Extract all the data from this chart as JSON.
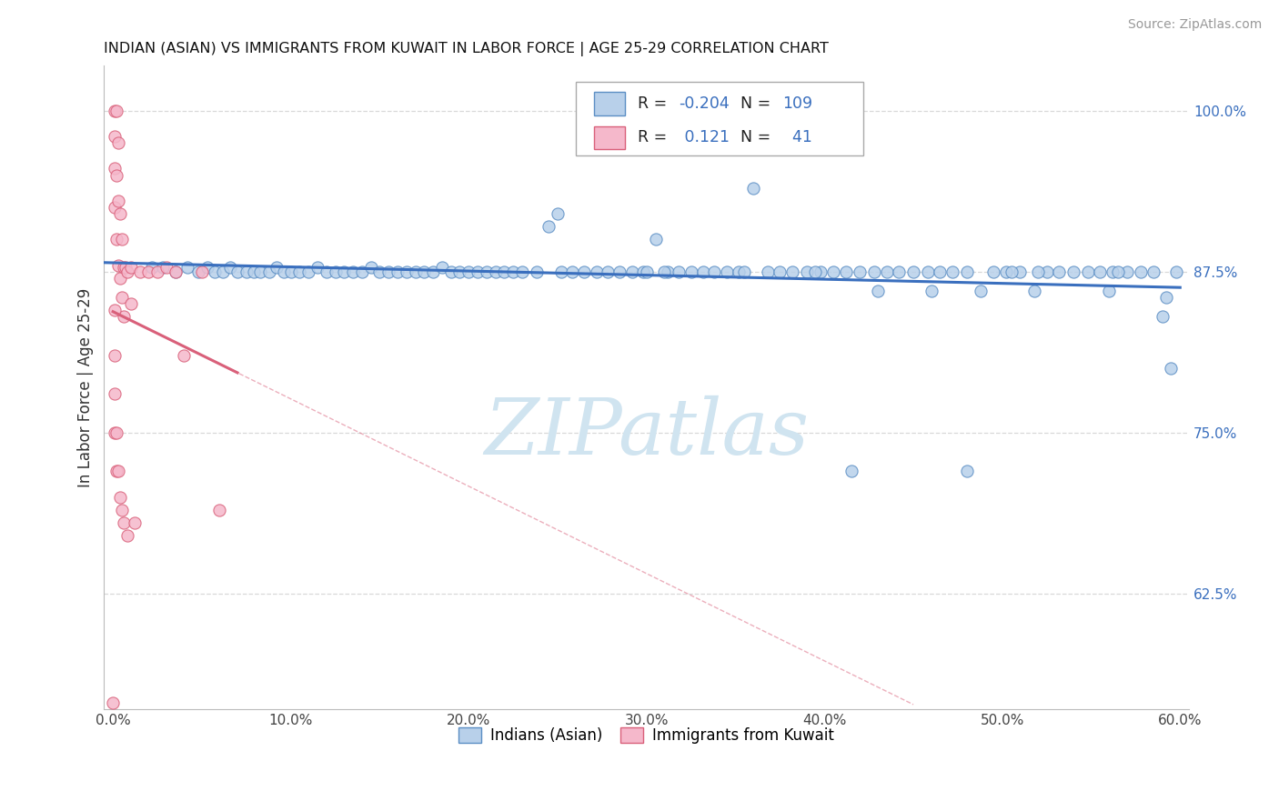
{
  "title": "INDIAN (ASIAN) VS IMMIGRANTS FROM KUWAIT IN LABOR FORCE | AGE 25-29 CORRELATION CHART",
  "source": "Source: ZipAtlas.com",
  "ylabel": "In Labor Force | Age 25-29",
  "xlim": [
    -0.005,
    0.605
  ],
  "ylim": [
    0.535,
    1.035
  ],
  "yticks": [
    0.625,
    0.75,
    0.875,
    1.0
  ],
  "ytick_labels": [
    "62.5%",
    "75.0%",
    "87.5%",
    "100.0%"
  ],
  "xticks": [
    0.0,
    0.1,
    0.2,
    0.3,
    0.4,
    0.5,
    0.6
  ],
  "xtick_labels": [
    "0.0%",
    "10.0%",
    "20.0%",
    "30.0%",
    "40.0%",
    "50.0%",
    "60.0%"
  ],
  "legend_labels": [
    "Indians (Asian)",
    "Immigrants from Kuwait"
  ],
  "R_blue": -0.204,
  "N_blue": 109,
  "R_pink": 0.121,
  "N_pink": 41,
  "blue_fill": "#b8d0ea",
  "blue_edge": "#5b8ec4",
  "pink_fill": "#f5b8cb",
  "pink_edge": "#d9607a",
  "blue_line": "#3a6fbe",
  "pink_line": "#d9607a",
  "grid_color": "#d8d8d8",
  "watermark_color": "#d0e4f0",
  "blue_x": [
    0.022,
    0.028,
    0.035,
    0.042,
    0.048,
    0.053,
    0.057,
    0.062,
    0.066,
    0.07,
    0.075,
    0.079,
    0.083,
    0.088,
    0.092,
    0.096,
    0.1,
    0.105,
    0.11,
    0.115,
    0.12,
    0.125,
    0.13,
    0.135,
    0.14,
    0.145,
    0.15,
    0.155,
    0.16,
    0.165,
    0.17,
    0.175,
    0.18,
    0.185,
    0.19,
    0.195,
    0.2,
    0.205,
    0.21,
    0.215,
    0.22,
    0.225,
    0.23,
    0.238,
    0.245,
    0.252,
    0.258,
    0.265,
    0.272,
    0.278,
    0.285,
    0.292,
    0.298,
    0.305,
    0.312,
    0.318,
    0.325,
    0.332,
    0.338,
    0.345,
    0.352,
    0.36,
    0.368,
    0.375,
    0.382,
    0.39,
    0.398,
    0.405,
    0.412,
    0.42,
    0.428,
    0.435,
    0.442,
    0.45,
    0.458,
    0.465,
    0.472,
    0.48,
    0.488,
    0.495,
    0.502,
    0.51,
    0.518,
    0.525,
    0.532,
    0.54,
    0.548,
    0.555,
    0.562,
    0.57,
    0.578,
    0.585,
    0.592,
    0.598,
    0.25,
    0.31,
    0.395,
    0.46,
    0.52,
    0.3,
    0.355,
    0.43,
    0.505,
    0.565,
    0.415,
    0.48,
    0.59,
    0.56,
    0.595
  ],
  "blue_y": [
    0.878,
    0.878,
    0.875,
    0.878,
    0.875,
    0.878,
    0.875,
    0.875,
    0.878,
    0.875,
    0.875,
    0.875,
    0.875,
    0.875,
    0.878,
    0.875,
    0.875,
    0.875,
    0.875,
    0.878,
    0.875,
    0.875,
    0.875,
    0.875,
    0.875,
    0.878,
    0.875,
    0.875,
    0.875,
    0.875,
    0.875,
    0.875,
    0.875,
    0.878,
    0.875,
    0.875,
    0.875,
    0.875,
    0.875,
    0.875,
    0.875,
    0.875,
    0.875,
    0.875,
    0.91,
    0.875,
    0.875,
    0.875,
    0.875,
    0.875,
    0.875,
    0.875,
    0.875,
    0.9,
    0.875,
    0.875,
    0.875,
    0.875,
    0.875,
    0.875,
    0.875,
    0.94,
    0.875,
    0.875,
    0.875,
    0.875,
    0.875,
    0.875,
    0.875,
    0.875,
    0.875,
    0.875,
    0.875,
    0.875,
    0.875,
    0.875,
    0.875,
    0.875,
    0.86,
    0.875,
    0.875,
    0.875,
    0.86,
    0.875,
    0.875,
    0.875,
    0.875,
    0.875,
    0.875,
    0.875,
    0.875,
    0.875,
    0.855,
    0.875,
    0.92,
    0.875,
    0.875,
    0.86,
    0.875,
    0.875,
    0.875,
    0.86,
    0.875,
    0.875,
    0.72,
    0.72,
    0.84,
    0.86,
    0.8
  ],
  "pink_x": [
    0.001,
    0.001,
    0.001,
    0.001,
    0.002,
    0.002,
    0.002,
    0.003,
    0.003,
    0.003,
    0.004,
    0.004,
    0.005,
    0.005,
    0.006,
    0.006,
    0.007,
    0.008,
    0.01,
    0.01,
    0.015,
    0.02,
    0.025,
    0.03,
    0.035,
    0.04,
    0.05,
    0.001,
    0.001,
    0.001,
    0.001,
    0.002,
    0.002,
    0.003,
    0.004,
    0.005,
    0.006,
    0.008,
    0.012,
    0.06,
    0.0
  ],
  "pink_y": [
    1.0,
    0.98,
    0.955,
    0.925,
    1.0,
    0.95,
    0.9,
    0.975,
    0.93,
    0.88,
    0.92,
    0.87,
    0.9,
    0.855,
    0.878,
    0.84,
    0.878,
    0.875,
    0.878,
    0.85,
    0.875,
    0.875,
    0.875,
    0.878,
    0.875,
    0.81,
    0.875,
    0.845,
    0.81,
    0.78,
    0.75,
    0.75,
    0.72,
    0.72,
    0.7,
    0.69,
    0.68,
    0.67,
    0.68,
    0.69,
    0.54
  ]
}
